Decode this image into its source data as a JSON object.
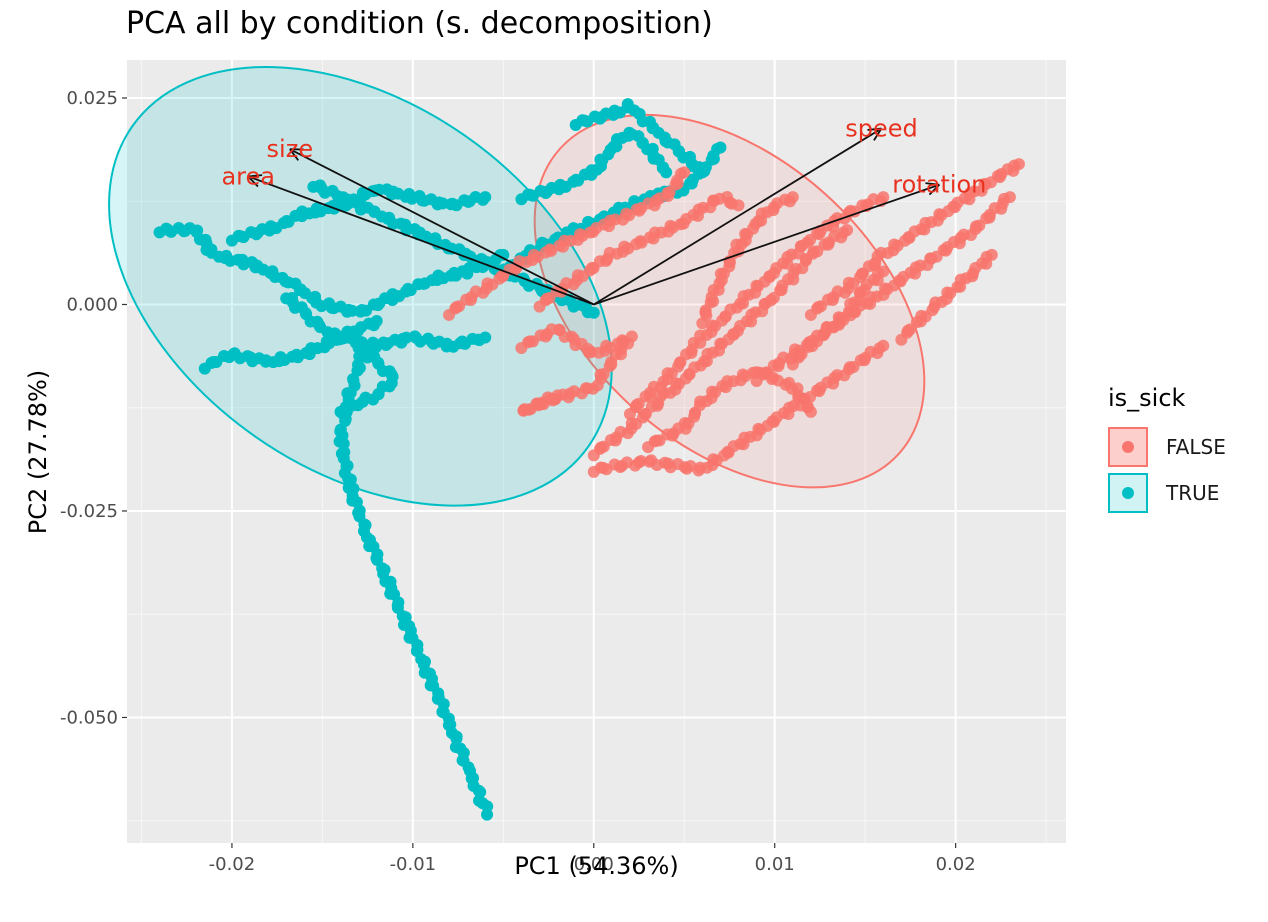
{
  "chart_data": {
    "type": "scatter",
    "title": "PCA all by condition (s. decomposition)",
    "xlabel": "PC1 (54.36%)",
    "ylabel": "PC2 (27.78%)",
    "xlim": [
      -0.0258,
      0.0261
    ],
    "ylim": [
      -0.0652,
      0.0296
    ],
    "x_ticks": [
      -0.02,
      -0.01,
      0.0,
      0.01,
      0.02
    ],
    "x_tick_labels": [
      "-0.02",
      "-0.01",
      "0.00",
      "0.01",
      "0.02"
    ],
    "y_ticks": [
      0.025,
      0.0,
      -0.025,
      -0.05
    ],
    "y_tick_labels": [
      "0.025",
      "0.000",
      "-0.025",
      "-0.050"
    ],
    "grid": true,
    "legend": {
      "title": "is_sick",
      "position": "right",
      "items": [
        {
          "label": "FALSE",
          "color": "#F8766D"
        },
        {
          "label": "TRUE",
          "color": "#00BFC4"
        }
      ]
    },
    "series": [
      {
        "name": "FALSE",
        "color": "#F8766D",
        "ellipse": {
          "center": [
            0.0075,
            0.0004
          ],
          "rx": 0.0126,
          "ry": 0.0174,
          "rotation_deg": 42
        },
        "paths": [
          [
            [
              -0.008,
              -0.001
            ],
            [
              -0.006,
              0.002
            ],
            [
              -0.004,
              0.005
            ],
            [
              -0.002,
              0.007
            ],
            [
              0.0,
              0.009
            ],
            [
              0.002,
              0.011
            ],
            [
              0.004,
              0.013
            ],
            [
              0.005,
              0.016
            ]
          ],
          [
            [
              -0.004,
              -0.005
            ],
            [
              -0.002,
              -0.003
            ],
            [
              0.0,
              -0.006
            ],
            [
              0.002,
              -0.004
            ],
            [
              0.0,
              -0.01
            ],
            [
              -0.003,
              -0.012
            ],
            [
              -0.004,
              -0.013
            ],
            [
              -0.002,
              -0.011
            ]
          ],
          [
            [
              0.0,
              -0.018
            ],
            [
              0.002,
              -0.015
            ],
            [
              0.004,
              -0.011
            ],
            [
              0.006,
              -0.007
            ],
            [
              0.008,
              -0.003
            ],
            [
              0.01,
              0.001
            ],
            [
              0.012,
              0.006
            ],
            [
              0.014,
              0.009
            ]
          ],
          [
            [
              0.0,
              -0.02
            ],
            [
              0.003,
              -0.019
            ],
            [
              0.006,
              -0.02
            ],
            [
              0.008,
              -0.017
            ],
            [
              0.01,
              -0.014
            ],
            [
              0.012,
              -0.011
            ],
            [
              0.014,
              -0.008
            ],
            [
              0.016,
              -0.005
            ]
          ],
          [
            [
              0.002,
              -0.013
            ],
            [
              0.004,
              -0.009
            ],
            [
              0.006,
              -0.004
            ],
            [
              0.008,
              0.0
            ],
            [
              0.01,
              0.004
            ],
            [
              0.012,
              0.008
            ],
            [
              0.014,
              0.011
            ],
            [
              0.016,
              0.013
            ]
          ],
          [
            [
              0.009,
              -0.009
            ],
            [
              0.011,
              -0.006
            ],
            [
              0.013,
              -0.003
            ],
            [
              0.015,
              0.0
            ],
            [
              0.017,
              0.003
            ],
            [
              0.019,
              0.006
            ],
            [
              0.021,
              0.009
            ],
            [
              0.023,
              0.013
            ]
          ],
          [
            [
              0.012,
              -0.001
            ],
            [
              0.014,
              0.002
            ],
            [
              0.016,
              0.006
            ],
            [
              0.018,
              0.009
            ],
            [
              0.02,
              0.012
            ],
            [
              0.022,
              0.015
            ],
            [
              0.0235,
              0.017
            ]
          ],
          [
            [
              0.017,
              -0.004
            ],
            [
              0.018,
              -0.002
            ],
            [
              0.019,
              0.0
            ],
            [
              0.02,
              0.002
            ],
            [
              0.021,
              0.004
            ],
            [
              0.022,
              0.006
            ]
          ],
          [
            [
              0.011,
              -0.007
            ],
            [
              0.012,
              -0.005
            ],
            [
              0.013,
              -0.003
            ],
            [
              0.014,
              -0.001
            ],
            [
              0.015,
              0.002
            ],
            [
              0.016,
              0.004
            ]
          ],
          [
            [
              -0.003,
              0.0
            ],
            [
              -0.001,
              0.003
            ],
            [
              0.001,
              0.006
            ],
            [
              0.003,
              0.008
            ],
            [
              0.005,
              0.01
            ],
            [
              0.007,
              0.013
            ],
            [
              0.008,
              0.012
            ]
          ],
          [
            [
              0.006,
              -0.002
            ],
            [
              0.007,
              0.003
            ],
            [
              0.008,
              0.007
            ],
            [
              0.009,
              0.01
            ],
            [
              0.01,
              0.012
            ],
            [
              0.011,
              0.013
            ]
          ],
          [
            [
              0.003,
              -0.017
            ],
            [
              0.005,
              -0.015
            ],
            [
              0.006,
              -0.012
            ],
            [
              0.007,
              -0.01
            ],
            [
              0.009,
              -0.008
            ],
            [
              0.011,
              -0.01
            ],
            [
              0.012,
              -0.013
            ]
          ]
        ]
      },
      {
        "name": "TRUE",
        "color": "#00BFC4",
        "ellipse": {
          "center": [
            -0.0129,
            0.0022
          ],
          "rx": 0.0154,
          "ry": 0.0222,
          "rotation_deg": 35
        },
        "paths": [
          [
            [
              -0.0059,
              -0.0615
            ],
            [
              -0.007,
              -0.056
            ],
            [
              -0.0085,
              -0.048
            ],
            [
              -0.0105,
              -0.038
            ],
            [
              -0.0125,
              -0.028
            ],
            [
              -0.0135,
              -0.022
            ],
            [
              -0.014,
              -0.016
            ],
            [
              -0.0135,
              -0.011
            ],
            [
              -0.0128,
              -0.006
            ]
          ],
          [
            [
              -0.024,
              0.009
            ],
            [
              -0.022,
              0.009
            ],
            [
              -0.021,
              0.006
            ],
            [
              -0.019,
              0.005
            ],
            [
              -0.017,
              0.003
            ],
            [
              -0.015,
              0.0
            ],
            [
              -0.013,
              -0.001
            ],
            [
              -0.011,
              0.001
            ],
            [
              -0.009,
              0.003
            ],
            [
              -0.007,
              0.004
            ],
            [
              -0.005,
              0.006
            ]
          ],
          [
            [
              -0.0215,
              -0.0075
            ],
            [
              -0.02,
              -0.006
            ],
            [
              -0.018,
              -0.007
            ],
            [
              -0.016,
              -0.006
            ],
            [
              -0.014,
              -0.004
            ],
            [
              -0.012,
              -0.005
            ],
            [
              -0.01,
              -0.004
            ],
            [
              -0.008,
              -0.005
            ],
            [
              -0.006,
              -0.004
            ]
          ],
          [
            [
              -0.02,
              0.008
            ],
            [
              -0.018,
              0.009
            ],
            [
              -0.016,
              0.011
            ],
            [
              -0.014,
              0.012
            ],
            [
              -0.012,
              0.014
            ],
            [
              -0.01,
              0.013
            ],
            [
              -0.008,
              0.012
            ],
            [
              -0.006,
              0.013
            ]
          ],
          [
            [
              -0.0155,
              0.0145
            ],
            [
              -0.014,
              0.013
            ],
            [
              -0.012,
              0.011
            ],
            [
              -0.01,
              0.009
            ],
            [
              -0.008,
              0.007
            ],
            [
              -0.006,
              0.005
            ],
            [
              -0.004,
              0.003
            ],
            [
              -0.002,
              0.001
            ],
            [
              0.0,
              -0.001
            ]
          ],
          [
            [
              -0.001,
              0.022
            ],
            [
              0.001,
              0.023
            ],
            [
              0.002,
              0.024
            ],
            [
              0.003,
              0.022
            ],
            [
              0.004,
              0.02
            ],
            [
              0.005,
              0.018
            ],
            [
              0.006,
              0.016
            ],
            [
              0.007,
              0.019
            ]
          ],
          [
            [
              -0.004,
              0.013
            ],
            [
              -0.002,
              0.014
            ],
            [
              0.0,
              0.016
            ],
            [
              0.001,
              0.019
            ],
            [
              0.002,
              0.021
            ],
            [
              0.003,
              0.019
            ],
            [
              0.004,
              0.016
            ]
          ],
          [
            [
              -0.005,
              0.004
            ],
            [
              -0.003,
              0.007
            ],
            [
              -0.001,
              0.009
            ],
            [
              0.001,
              0.011
            ],
            [
              0.003,
              0.013
            ],
            [
              0.005,
              0.014
            ],
            [
              0.006,
              0.016
            ]
          ],
          [
            [
              -0.013,
              -0.005
            ],
            [
              -0.012,
              -0.007
            ],
            [
              -0.011,
              -0.009
            ],
            [
              -0.012,
              -0.011
            ],
            [
              -0.013,
              -0.012
            ],
            [
              -0.014,
              -0.013
            ]
          ],
          [
            [
              -0.017,
              0.001
            ],
            [
              -0.016,
              -0.001
            ],
            [
              -0.015,
              -0.003
            ],
            [
              -0.014,
              -0.004
            ],
            [
              -0.013,
              -0.003
            ],
            [
              -0.012,
              -0.002
            ]
          ]
        ]
      }
    ],
    "loadings": [
      {
        "label": "size",
        "x": -0.0168,
        "y": 0.0188
      },
      {
        "label": "area",
        "x": -0.0191,
        "y": 0.0155
      },
      {
        "label": "speed",
        "x": 0.0159,
        "y": 0.0213
      },
      {
        "label": "rotation",
        "x": 0.0191,
        "y": 0.0145
      }
    ]
  }
}
